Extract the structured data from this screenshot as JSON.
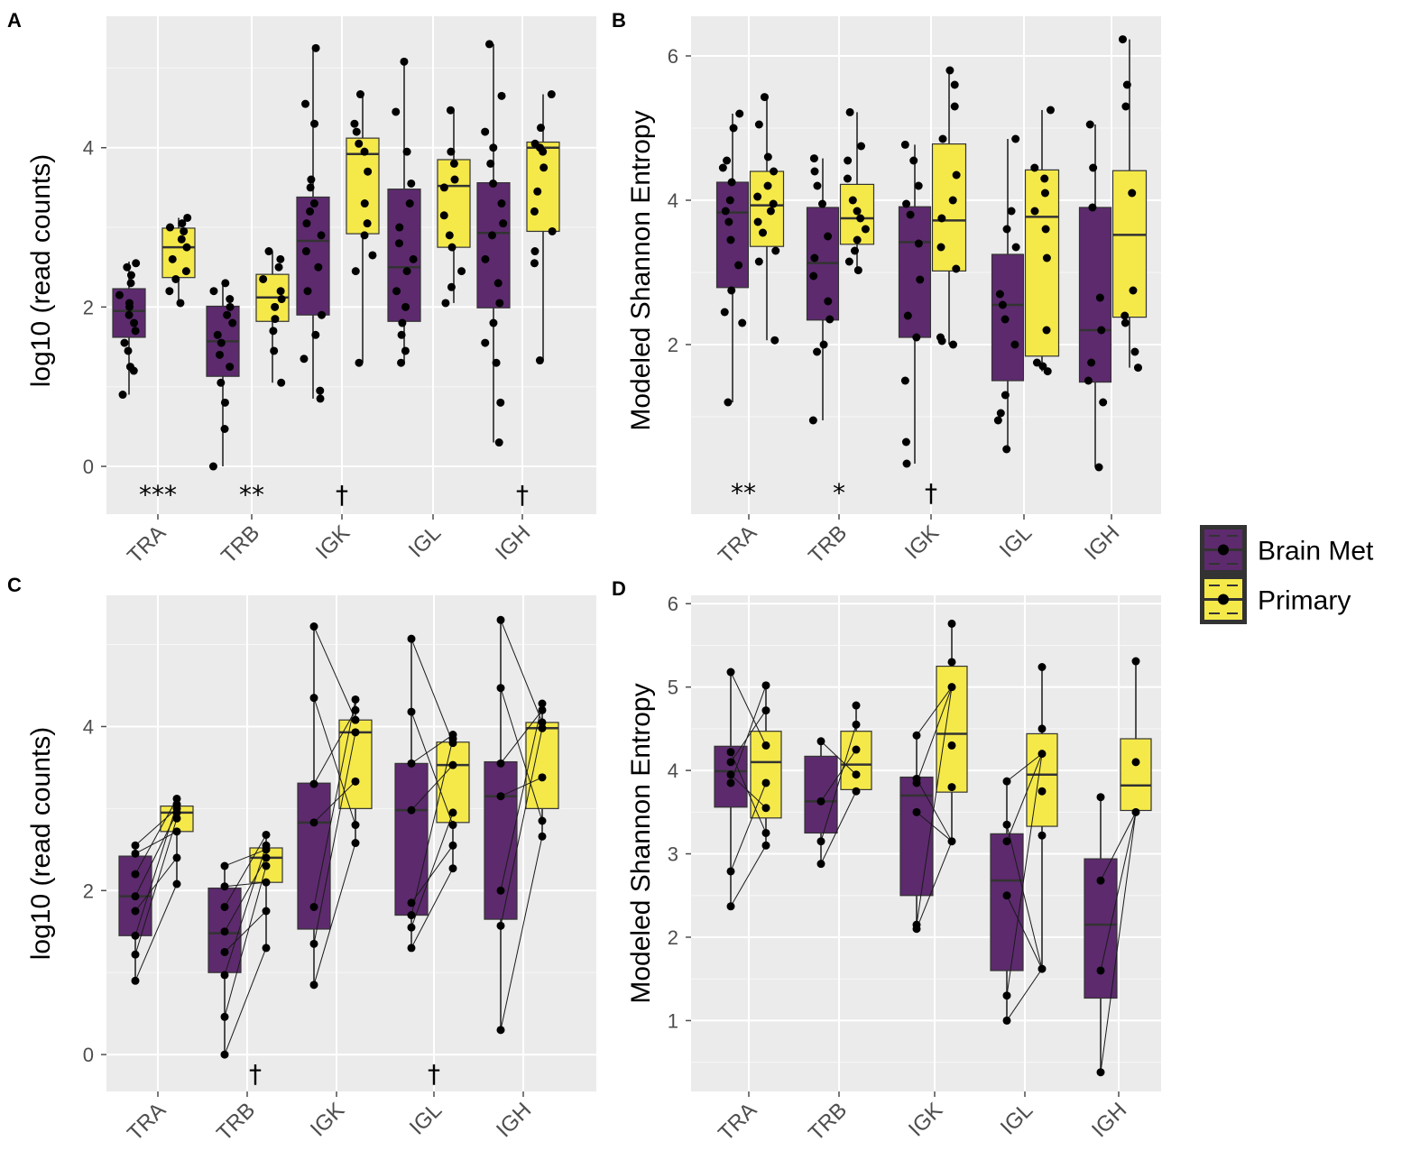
{
  "legend": {
    "items": [
      {
        "label": "Brain Met",
        "color": "#5d2a6e"
      },
      {
        "label": "Primary",
        "color": "#f5e94a"
      }
    ]
  },
  "chart_data": [
    {
      "panel": "A",
      "type": "box",
      "ylabel": "log10 (read counts)",
      "ylim": [
        -0.6,
        5.65
      ],
      "yticks": [
        0,
        2,
        4
      ],
      "paired": false,
      "categories": [
        "TRA",
        "TRB",
        "IGK",
        "IGL",
        "IGH"
      ],
      "significance": [
        "***",
        "**",
        "†",
        "",
        "†"
      ],
      "series": [
        {
          "name": "Brain Met",
          "groups": [
            {
              "q1": 1.62,
              "median": 1.95,
              "q3": 2.23,
              "lo": 0.9,
              "hi": 2.57,
              "points": [
                0.9,
                1.2,
                1.25,
                1.45,
                1.55,
                1.7,
                1.8,
                1.9,
                2.0,
                2.05,
                2.15,
                2.3,
                2.4,
                2.5,
                2.55
              ]
            },
            {
              "q1": 1.13,
              "median": 1.57,
              "q3": 2.01,
              "lo": 0.0,
              "hi": 2.33,
              "points": [
                0.0,
                0.47,
                0.8,
                1.05,
                1.25,
                1.4,
                1.55,
                1.65,
                1.8,
                1.9,
                2.0,
                2.1,
                2.2,
                2.3
              ]
            },
            {
              "q1": 1.9,
              "median": 2.83,
              "q3": 3.38,
              "lo": 0.85,
              "hi": 5.25,
              "points": [
                0.85,
                0.95,
                1.35,
                1.65,
                1.9,
                2.2,
                2.5,
                2.7,
                2.9,
                3.05,
                3.2,
                3.3,
                3.5,
                3.6,
                4.3,
                4.55,
                5.25
              ]
            },
            {
              "q1": 1.82,
              "median": 2.5,
              "q3": 3.48,
              "lo": 1.3,
              "hi": 5.08,
              "points": [
                1.3,
                1.45,
                1.65,
                1.8,
                2.0,
                2.2,
                2.45,
                2.6,
                2.8,
                3.0,
                3.3,
                3.55,
                3.95,
                4.45,
                5.08
              ]
            },
            {
              "q1": 1.99,
              "median": 2.93,
              "q3": 3.56,
              "lo": 0.3,
              "hi": 5.3,
              "points": [
                0.3,
                0.8,
                1.3,
                1.55,
                1.8,
                2.05,
                2.3,
                2.6,
                2.9,
                3.05,
                3.3,
                3.55,
                3.8,
                4.0,
                4.2,
                4.65,
                5.3
              ]
            }
          ]
        },
        {
          "name": "Primary",
          "groups": [
            {
              "q1": 2.37,
              "median": 2.75,
              "q3": 2.99,
              "lo": 2.05,
              "hi": 3.12,
              "points": [
                2.05,
                2.2,
                2.35,
                2.45,
                2.6,
                2.75,
                2.85,
                2.95,
                3.0,
                3.05,
                3.12
              ]
            },
            {
              "q1": 1.82,
              "median": 2.12,
              "q3": 2.41,
              "lo": 1.05,
              "hi": 2.7,
              "points": [
                1.05,
                1.45,
                1.7,
                1.85,
                2.0,
                2.1,
                2.2,
                2.35,
                2.5,
                2.6,
                2.7
              ]
            },
            {
              "q1": 2.92,
              "median": 3.92,
              "q3": 4.12,
              "lo": 1.3,
              "hi": 4.67,
              "points": [
                1.3,
                2.45,
                2.65,
                2.9,
                3.05,
                3.3,
                3.7,
                3.95,
                4.05,
                4.2,
                4.3,
                4.67
              ]
            },
            {
              "q1": 2.75,
              "median": 3.52,
              "q3": 3.85,
              "lo": 2.05,
              "hi": 4.47,
              "points": [
                2.05,
                2.25,
                2.45,
                2.75,
                2.9,
                3.15,
                3.5,
                3.6,
                3.8,
                3.95,
                4.47
              ]
            },
            {
              "q1": 2.95,
              "median": 4.0,
              "q3": 4.07,
              "lo": 1.33,
              "hi": 4.67,
              "points": [
                1.33,
                2.55,
                2.7,
                2.95,
                3.2,
                3.45,
                3.75,
                3.95,
                4.0,
                4.05,
                4.25,
                4.67
              ]
            }
          ]
        }
      ]
    },
    {
      "panel": "B",
      "type": "box",
      "ylabel": "Modeled Shannon Entropy",
      "ylim": [
        -0.35,
        6.55
      ],
      "yticks": [
        2,
        4,
        6
      ],
      "paired": false,
      "categories": [
        "TRA",
        "TRB",
        "IGK",
        "IGL",
        "IGH"
      ],
      "significance": [
        "**",
        "*",
        "†",
        "",
        ""
      ],
      "series": [
        {
          "name": "Brain Met",
          "groups": [
            {
              "q1": 2.79,
              "median": 3.83,
              "q3": 4.25,
              "lo": 1.2,
              "hi": 5.2,
              "points": [
                1.2,
                2.3,
                2.45,
                2.75,
                3.1,
                3.45,
                3.7,
                3.85,
                4.0,
                4.25,
                4.45,
                4.55,
                5.0,
                5.2
              ]
            },
            {
              "q1": 2.34,
              "median": 3.13,
              "q3": 3.9,
              "lo": 0.95,
              "hi": 4.58,
              "points": [
                0.95,
                1.9,
                2.0,
                2.35,
                2.6,
                2.95,
                3.2,
                3.5,
                3.95,
                4.2,
                4.4,
                4.58
              ]
            },
            {
              "q1": 2.1,
              "median": 3.42,
              "q3": 3.91,
              "lo": 0.35,
              "hi": 4.77,
              "points": [
                0.35,
                0.65,
                1.5,
                2.1,
                2.4,
                2.9,
                3.4,
                3.8,
                3.95,
                4.2,
                4.55,
                4.77
              ]
            },
            {
              "q1": 1.5,
              "median": 2.55,
              "q3": 3.25,
              "lo": 0.55,
              "hi": 4.85,
              "points": [
                0.55,
                0.95,
                1.05,
                1.3,
                2.0,
                2.35,
                2.55,
                2.7,
                3.35,
                3.6,
                3.85,
                4.85
              ]
            },
            {
              "q1": 1.48,
              "median": 2.2,
              "q3": 3.9,
              "lo": 0.3,
              "hi": 5.05,
              "points": [
                0.3,
                1.2,
                1.5,
                1.75,
                2.2,
                2.65,
                3.9,
                4.45,
                5.05
              ]
            }
          ]
        },
        {
          "name": "Primary",
          "groups": [
            {
              "q1": 3.36,
              "median": 3.93,
              "q3": 4.4,
              "lo": 2.06,
              "hi": 5.43,
              "points": [
                2.06,
                3.15,
                3.3,
                3.55,
                3.7,
                3.85,
                3.95,
                4.05,
                4.2,
                4.4,
                4.6,
                5.05,
                5.43
              ]
            },
            {
              "q1": 3.39,
              "median": 3.75,
              "q3": 4.22,
              "lo": 3.03,
              "hi": 5.22,
              "points": [
                3.03,
                3.15,
                3.3,
                3.45,
                3.6,
                3.75,
                3.85,
                4.0,
                4.3,
                4.55,
                4.75,
                5.22
              ]
            },
            {
              "q1": 3.02,
              "median": 3.72,
              "q3": 4.78,
              "lo": 2.0,
              "hi": 5.8,
              "points": [
                2.0,
                2.05,
                2.1,
                3.05,
                3.35,
                3.75,
                4.0,
                4.35,
                4.85,
                5.3,
                5.6,
                5.8
              ]
            },
            {
              "q1": 1.84,
              "median": 3.77,
              "q3": 4.42,
              "lo": 1.63,
              "hi": 5.25,
              "points": [
                1.63,
                1.7,
                1.75,
                2.2,
                3.2,
                3.6,
                3.85,
                4.1,
                4.3,
                4.45,
                5.25
              ]
            },
            {
              "q1": 2.38,
              "median": 3.52,
              "q3": 4.41,
              "lo": 1.68,
              "hi": 6.23,
              "points": [
                1.68,
                1.9,
                2.3,
                2.4,
                2.75,
                4.1,
                5.3,
                5.6,
                6.23
              ]
            }
          ]
        }
      ]
    },
    {
      "panel": "C",
      "type": "box",
      "ylabel": "log10 (read counts)",
      "ylim": [
        -0.45,
        5.6
      ],
      "yticks": [
        0,
        2,
        4
      ],
      "paired": true,
      "categories": [
        "TRA",
        "TRB",
        "IGK",
        "IGL",
        "IGH"
      ],
      "significance": [
        "",
        "†",
        "",
        "†",
        ""
      ],
      "series": [
        {
          "name": "Brain Met",
          "groups": [
            {
              "q1": 1.45,
              "median": 1.93,
              "q3": 2.42,
              "lo": 0.9,
              "hi": 2.55,
              "points": [
                0.9,
                1.22,
                1.45,
                1.75,
                1.93,
                2.2,
                2.45,
                2.55
              ]
            },
            {
              "q1": 1.0,
              "median": 1.48,
              "q3": 2.03,
              "lo": 0.0,
              "hi": 2.3,
              "points": [
                0.0,
                0.46,
                0.97,
                1.25,
                1.5,
                1.8,
                2.05,
                2.3
              ]
            },
            {
              "q1": 1.53,
              "median": 2.83,
              "q3": 3.31,
              "lo": 0.85,
              "hi": 5.22,
              "points": [
                0.85,
                1.35,
                1.8,
                2.83,
                3.3,
                4.35,
                5.22
              ]
            },
            {
              "q1": 1.7,
              "median": 2.98,
              "q3": 3.55,
              "lo": 1.3,
              "hi": 5.07,
              "points": [
                1.3,
                1.55,
                1.7,
                1.85,
                2.98,
                3.55,
                4.18,
                5.07
              ]
            },
            {
              "q1": 1.65,
              "median": 3.15,
              "q3": 3.57,
              "lo": 0.3,
              "hi": 5.3,
              "points": [
                0.3,
                1.57,
                2.0,
                3.15,
                3.55,
                4.47,
                5.3
              ]
            }
          ]
        },
        {
          "name": "Primary",
          "groups": [
            {
              "q1": 2.72,
              "median": 2.95,
              "q3": 3.03,
              "lo": 2.08,
              "hi": 3.12,
              "points": [
                2.08,
                2.4,
                2.72,
                2.88,
                2.95,
                3.0,
                3.05,
                3.12
              ]
            },
            {
              "q1": 2.1,
              "median": 2.4,
              "q3": 2.52,
              "lo": 1.3,
              "hi": 2.68,
              "points": [
                1.3,
                1.75,
                2.1,
                2.3,
                2.4,
                2.5,
                2.55,
                2.68
              ]
            },
            {
              "q1": 3.0,
              "median": 3.93,
              "q3": 4.08,
              "lo": 2.58,
              "hi": 4.33,
              "points": [
                2.58,
                2.8,
                3.33,
                3.93,
                4.08,
                4.2,
                4.33
              ]
            },
            {
              "q1": 2.83,
              "median": 3.53,
              "q3": 3.81,
              "lo": 2.27,
              "hi": 3.9,
              "points": [
                2.27,
                2.55,
                2.8,
                2.95,
                3.53,
                3.8,
                3.85,
                3.9
              ]
            },
            {
              "q1": 3.0,
              "median": 3.98,
              "q3": 4.05,
              "lo": 2.66,
              "hi": 4.28,
              "points": [
                2.66,
                2.85,
                3.38,
                3.98,
                4.05,
                4.2,
                4.28
              ]
            }
          ]
        }
      ]
    },
    {
      "panel": "D",
      "type": "box",
      "ylabel": "Modeled Shannon Entropy",
      "ylim": [
        0.15,
        6.1
      ],
      "yticks": [
        1,
        2,
        3,
        4,
        5,
        6
      ],
      "paired": true,
      "categories": [
        "TRA",
        "TRB",
        "IGK",
        "IGL",
        "IGH"
      ],
      "significance": [
        "",
        "",
        "",
        "",
        ""
      ],
      "series": [
        {
          "name": "Brain Met",
          "groups": [
            {
              "q1": 3.56,
              "median": 3.99,
              "q3": 4.29,
              "lo": 2.37,
              "hi": 5.18,
              "points": [
                2.37,
                2.79,
                3.85,
                3.95,
                4.1,
                4.22,
                5.18
              ]
            },
            {
              "q1": 3.25,
              "median": 3.63,
              "q3": 4.17,
              "lo": 2.88,
              "hi": 4.35,
              "points": [
                2.88,
                3.15,
                3.63,
                4.35
              ]
            },
            {
              "q1": 2.5,
              "median": 3.7,
              "q3": 3.92,
              "lo": 2.1,
              "hi": 4.42,
              "points": [
                2.1,
                2.15,
                3.5,
                3.85,
                3.9,
                4.42
              ]
            },
            {
              "q1": 1.6,
              "median": 2.68,
              "q3": 3.24,
              "lo": 1.0,
              "hi": 3.87,
              "points": [
                1.0,
                1.3,
                2.5,
                3.15,
                3.35,
                3.87
              ]
            },
            {
              "q1": 1.27,
              "median": 2.15,
              "q3": 2.94,
              "lo": 0.38,
              "hi": 3.68,
              "points": [
                0.38,
                1.6,
                2.68,
                3.68
              ]
            }
          ]
        },
        {
          "name": "Primary",
          "groups": [
            {
              "q1": 3.43,
              "median": 4.1,
              "q3": 4.47,
              "lo": 3.1,
              "hi": 5.02,
              "points": [
                3.1,
                3.25,
                3.55,
                3.85,
                4.3,
                4.72,
                5.02
              ]
            },
            {
              "q1": 3.77,
              "median": 4.07,
              "q3": 4.47,
              "lo": 3.75,
              "hi": 4.78,
              "points": [
                3.75,
                3.95,
                4.25,
                4.55,
                4.78
              ]
            },
            {
              "q1": 3.74,
              "median": 4.44,
              "q3": 5.25,
              "lo": 3.15,
              "hi": 5.76,
              "points": [
                3.15,
                3.8,
                4.3,
                5.0,
                5.3,
                5.76
              ]
            },
            {
              "q1": 3.33,
              "median": 3.95,
              "q3": 4.44,
              "lo": 1.62,
              "hi": 5.24,
              "points": [
                1.62,
                3.22,
                3.75,
                4.2,
                4.5,
                5.24
              ]
            },
            {
              "q1": 3.52,
              "median": 3.82,
              "q3": 4.38,
              "lo": 3.5,
              "hi": 5.31,
              "points": [
                3.5,
                4.1,
                5.31
              ]
            }
          ]
        }
      ]
    }
  ]
}
